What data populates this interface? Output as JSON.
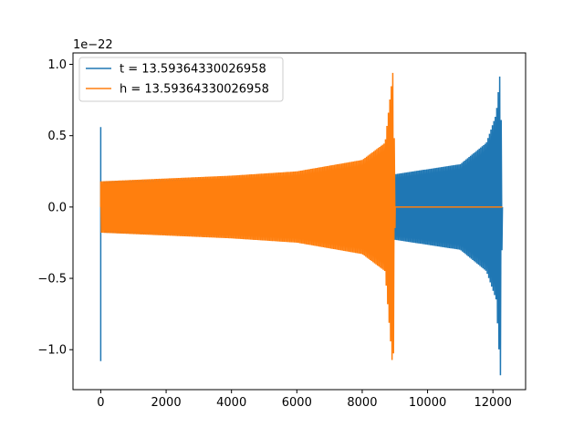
{
  "chart_data": {
    "type": "line",
    "title": "",
    "xlabel": "",
    "ylabel": "",
    "y_scale_label": "1e−22",
    "xlim": [
      -850,
      13000
    ],
    "ylim": [
      -1.28,
      1.08
    ],
    "x_ticks": [
      0,
      2000,
      4000,
      6000,
      8000,
      10000,
      12000
    ],
    "x_tick_labels": [
      "0",
      "2000",
      "4000",
      "6000",
      "8000",
      "10000",
      "12000"
    ],
    "y_ticks": [
      1.0,
      0.5,
      0.0,
      -0.5,
      -1.0
    ],
    "y_tick_labels": [
      "1.0",
      "0.5",
      "0.0",
      "−0.5",
      "−1.0"
    ],
    "grid": false,
    "legend_position": "upper-left",
    "series": [
      {
        "name": "t = 13.59364330026958",
        "color": "#1f77b4",
        "x_start": 0,
        "x_end": 12290,
        "initial_spike": {
          "x": 0,
          "max": 0.56,
          "min": -1.08
        },
        "envelope": [
          {
            "x": 100,
            "upper": 0.18,
            "lower": -0.18
          },
          {
            "x": 4000,
            "upper": 0.2,
            "lower": -0.2
          },
          {
            "x": 9000,
            "upper": 0.23,
            "lower": -0.23
          },
          {
            "x": 11000,
            "upper": 0.3,
            "lower": -0.3
          },
          {
            "x": 11800,
            "upper": 0.45,
            "lower": -0.45
          },
          {
            "x": 12100,
            "upper": 0.65,
            "lower": -0.65
          },
          {
            "x": 12230,
            "upper": 0.97,
            "lower": -1.18
          },
          {
            "x": 12290,
            "upper": 0.0,
            "lower": 0.0
          }
        ]
      },
      {
        "name": "h = 13.59364330026958",
        "color": "#ff7f0e",
        "x_start": 0,
        "x_end": 12290,
        "merger_x": 9010,
        "envelope": [
          {
            "x": 0,
            "upper": 0.18,
            "lower": -0.18
          },
          {
            "x": 4000,
            "upper": 0.22,
            "lower": -0.22
          },
          {
            "x": 6000,
            "upper": 0.25,
            "lower": -0.25
          },
          {
            "x": 8000,
            "upper": 0.33,
            "lower": -0.33
          },
          {
            "x": 8700,
            "upper": 0.45,
            "lower": -0.45
          },
          {
            "x": 8950,
            "upper": 0.97,
            "lower": -1.18
          },
          {
            "x": 9010,
            "upper": 0.0,
            "lower": 0.0
          }
        ]
      }
    ]
  }
}
